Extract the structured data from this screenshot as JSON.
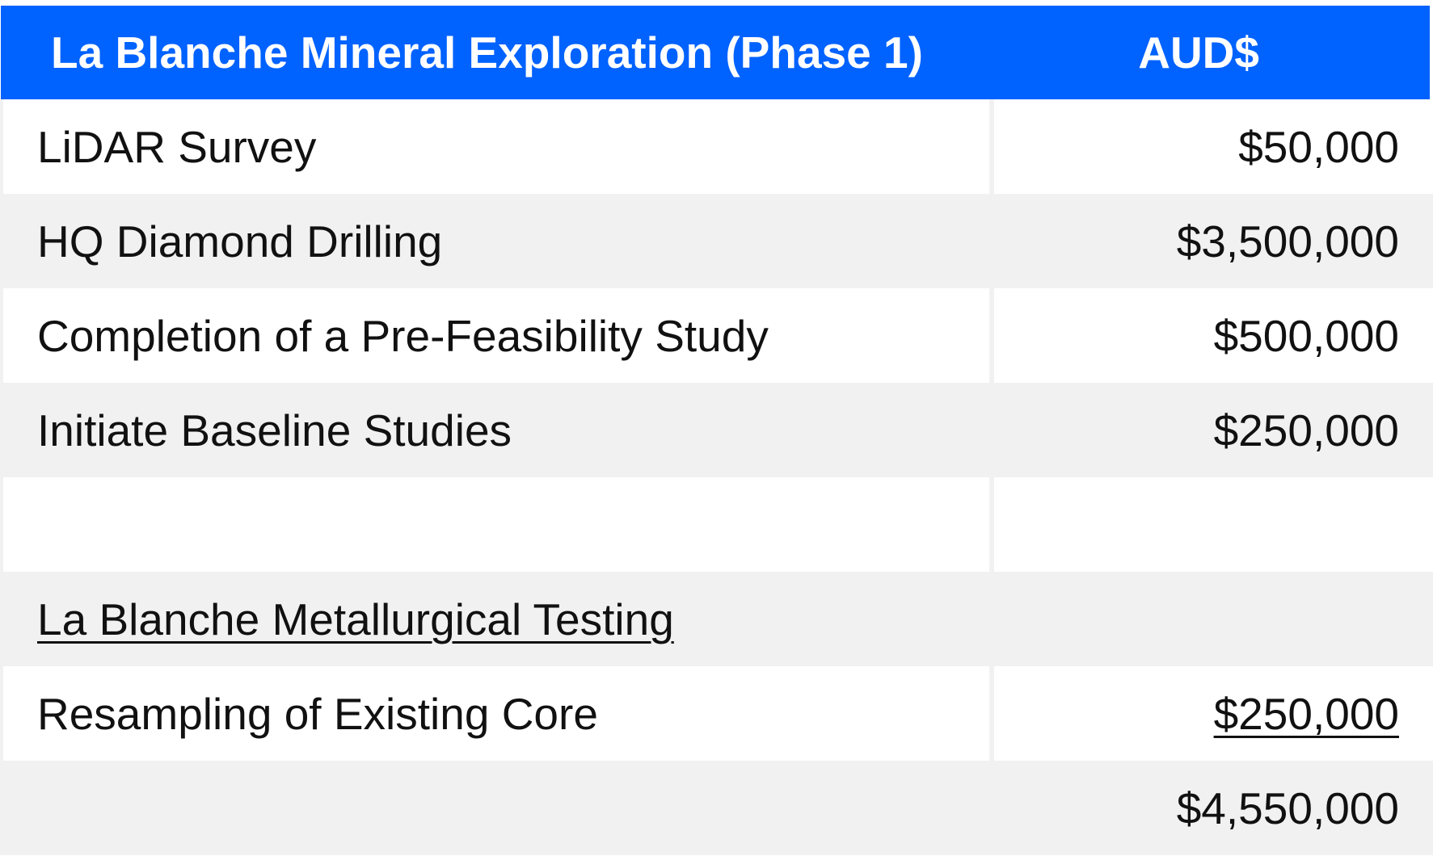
{
  "table": {
    "header": {
      "item": "La Blanche Mineral Exploration (Phase 1)",
      "amount": "AUD$"
    },
    "rows": [
      {
        "item": "LiDAR Survey",
        "amount": "$50,000"
      },
      {
        "item": "HQ Diamond Drilling",
        "amount": "$3,500,000"
      },
      {
        "item": "Completion of a Pre-Feasibility Study",
        "amount": "$500,000"
      },
      {
        "item": "Initiate Baseline Studies",
        "amount": "$250,000"
      },
      {
        "item": "",
        "amount": ""
      },
      {
        "item": "La Blanche Metallurgical Testing",
        "amount": ""
      },
      {
        "item": "Resampling of Existing Core",
        "amount": "$250,000"
      },
      {
        "item": "",
        "amount": "$4,550,000"
      }
    ]
  },
  "colors": {
    "header_bg": "#0062ff",
    "header_text": "#ffffff",
    "stripe": "#f1f1f1",
    "row_bg": "#ffffff",
    "text": "#111111"
  }
}
